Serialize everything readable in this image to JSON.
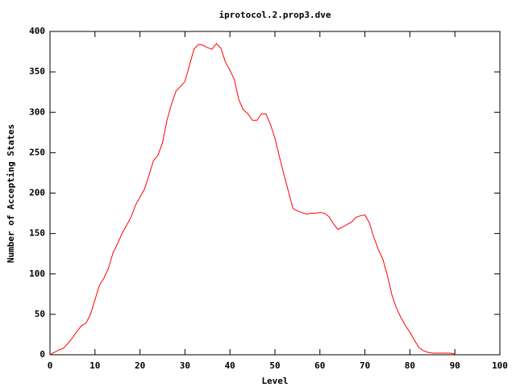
{
  "chart_data": {
    "type": "line",
    "title": "iprotocol.2.prop3.dve",
    "x_label": "Level",
    "y_label": "Number of Accepting States",
    "x": [
      0,
      1,
      2,
      3,
      4,
      5,
      6,
      7,
      8,
      9,
      10,
      11,
      12,
      13,
      14,
      15,
      16,
      17,
      18,
      19,
      20,
      21,
      22,
      23,
      24,
      25,
      26,
      27,
      28,
      29,
      30,
      31,
      32,
      33,
      34,
      35,
      36,
      37,
      38,
      39,
      40,
      41,
      42,
      43,
      44,
      45,
      46,
      47,
      48,
      49,
      50,
      51,
      52,
      53,
      54,
      55,
      56,
      57,
      58,
      59,
      60,
      61,
      62,
      63,
      64,
      65,
      66,
      67,
      68,
      69,
      70,
      71,
      72,
      73,
      74,
      75,
      76,
      77,
      78,
      79,
      80,
      81,
      82,
      83,
      84,
      85,
      86,
      87,
      88,
      89,
      90
    ],
    "values": [
      0,
      3,
      6,
      8,
      14,
      21,
      29,
      36,
      39,
      50,
      68,
      86,
      95,
      107,
      126,
      137,
      150,
      160,
      170,
      185,
      195,
      205,
      222,
      240,
      247,
      262,
      290,
      310,
      326,
      332,
      338,
      358,
      378,
      384,
      383,
      380,
      378,
      385,
      379,
      362,
      352,
      340,
      315,
      303,
      298,
      290,
      290,
      298,
      298,
      285,
      268,
      245,
      223,
      202,
      181,
      178,
      176,
      174,
      175,
      175,
      176,
      175,
      171,
      162,
      155,
      158,
      161,
      164,
      170,
      172,
      173,
      163,
      145,
      130,
      118,
      98,
      74,
      58,
      46,
      36,
      28,
      18,
      9,
      5,
      3,
      2,
      2,
      2,
      2,
      2,
      1
    ],
    "color": "#ff0000",
    "xlim": [
      0,
      100
    ],
    "xticks": [
      0,
      10,
      20,
      30,
      40,
      50,
      60,
      70,
      80,
      90,
      100
    ],
    "ylim": [
      0,
      400
    ],
    "yticks": [
      0,
      50,
      100,
      150,
      200,
      250,
      300,
      350,
      400
    ]
  }
}
